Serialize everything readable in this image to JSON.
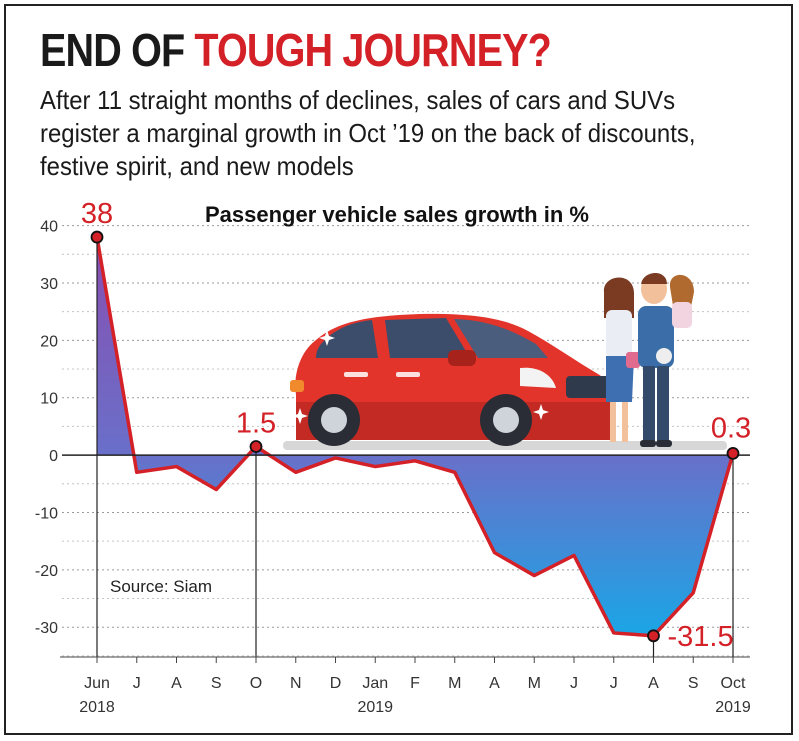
{
  "headline": {
    "part1": "END OF",
    "part2": "TOUGH JOURNEY?"
  },
  "subtitle": "After 11 straight months of declines, sales of cars and SUVs register a marginal growth in Oct ’19 on the back of discounts, festive spirit, and new models",
  "source": "Source: Siam",
  "colors": {
    "accent": "#d42027",
    "area_top": "#8a4db0",
    "area_bottom": "#1aa6e6",
    "area_mid": "#6a6fc9"
  },
  "chart_data": {
    "type": "area",
    "title": "Passenger vehicle sales growth in %",
    "xlabel": "",
    "ylabel": "",
    "ylim": [
      -35,
      40
    ],
    "yticks": [
      40,
      30,
      20,
      10,
      0,
      -10,
      -20,
      -30
    ],
    "grid": true,
    "categories": [
      "Jun",
      "J",
      "A",
      "S",
      "O",
      "N",
      "D",
      "Jan",
      "F",
      "M",
      "A",
      "M",
      "J",
      "J",
      "A",
      "S",
      "Oct"
    ],
    "year_labels": [
      {
        "index": 0,
        "label": "2018"
      },
      {
        "index": 7,
        "label": "2019"
      },
      {
        "index": 16,
        "label": "2019"
      }
    ],
    "series": [
      {
        "name": "Passenger vehicle sales growth",
        "values": [
          38,
          -3,
          -2,
          -6,
          1.5,
          -3,
          -0.5,
          -2,
          -1,
          -3,
          -17,
          -21,
          -17.5,
          -31,
          -31.5,
          -24,
          0.3
        ]
      }
    ],
    "annotations": [
      {
        "index": 0,
        "label": "38"
      },
      {
        "index": 4,
        "label": "1.5"
      },
      {
        "index": 14,
        "label": "-31.5"
      },
      {
        "index": 16,
        "label": "0.3"
      }
    ]
  }
}
